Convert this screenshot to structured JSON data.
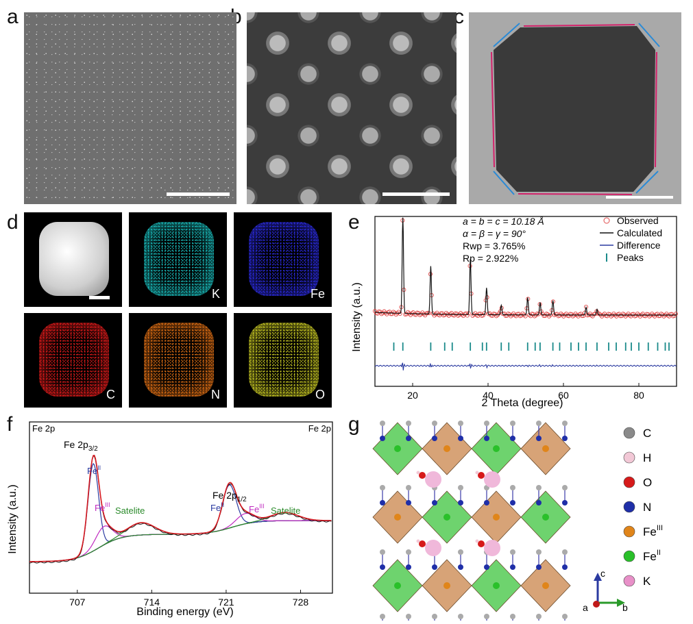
{
  "panels": {
    "a": {
      "label": "a"
    },
    "b": {
      "label": "b"
    },
    "c": {
      "label": "c"
    },
    "d": {
      "label": "d",
      "tiles": [
        {
          "element": "",
          "color": "#e6e6e6"
        },
        {
          "element": "K",
          "color": "#19b3b3"
        },
        {
          "element": "Fe",
          "color": "#2a2ad6"
        },
        {
          "element": "C",
          "color": "#d21a1a"
        },
        {
          "element": "N",
          "color": "#d56a14"
        },
        {
          "element": "O",
          "color": "#bdbd22"
        }
      ]
    },
    "e": {
      "label": "e"
    },
    "f": {
      "label": "f"
    },
    "g": {
      "label": "g"
    }
  },
  "chart_data": [
    {
      "type": "scatter",
      "panel": "e",
      "xlabel": "2 Theta (degree)",
      "ylabel": "Intensity (a.u.)",
      "xlim": [
        10,
        90
      ],
      "xticks": [
        20,
        40,
        60,
        80
      ],
      "annotations": [
        "a = b = c = 10.18 Å",
        "α = β = γ = 90°",
        "Rwp = 3.765%",
        "Rp = 2.922%"
      ],
      "legend": [
        "Observed",
        "Calculated",
        "Difference",
        "Peaks"
      ],
      "peaks_2theta": [
        17.4,
        24.8,
        35.3,
        39.6,
        43.5,
        50.5,
        53.8,
        57.2,
        66.0,
        68.9
      ],
      "peak_rel_intensity": [
        1.0,
        0.5,
        0.58,
        0.28,
        0.1,
        0.18,
        0.13,
        0.15,
        0.08,
        0.06
      ],
      "tick_marks_2theta": [
        15,
        17.4,
        24.8,
        28.5,
        30.5,
        35.3,
        38.5,
        39.6,
        43.5,
        45.5,
        50.5,
        52.5,
        53.8,
        57.2,
        59,
        62,
        64,
        66,
        68.9,
        72,
        74,
        76.5,
        78,
        80,
        82.5,
        85,
        87,
        88
      ]
    },
    {
      "type": "line",
      "panel": "f",
      "xlabel": "Binding energy (eV)",
      "ylabel": "Intensity (a.u.)",
      "xlim": [
        702.5,
        731
      ],
      "xticks": [
        707,
        714,
        721,
        728
      ],
      "corner_labels": [
        "Fe 2p",
        "Fe 2p"
      ],
      "peak_labels": {
        "fe2p32": "Fe 2p3/2",
        "fe2p12": "Fe 2p1/2",
        "feII_a": "FeII",
        "feIII_a": "FeIII",
        "sat_a": "Satelite",
        "feII_b": "FeII",
        "feIII_b": "FeIII",
        "sat_b": "Satelite"
      },
      "series": [
        {
          "name": "FeII 2p3/2",
          "center": 708.5,
          "height": 0.85
        },
        {
          "name": "FeIII 2p3/2",
          "center": 709.5,
          "height": 0.18
        },
        {
          "name": "Satelite",
          "center": 713.0,
          "height": 0.12
        },
        {
          "name": "FeII 2p1/2",
          "center": 721.3,
          "height": 0.42
        },
        {
          "name": "FeIII 2p1/2",
          "center": 722.8,
          "height": 0.1
        },
        {
          "name": "Satelite",
          "center": 726.5,
          "height": 0.08
        }
      ],
      "colors": {
        "envelope": "#d6181f",
        "raw": "#111111",
        "feII": "#2a3aa0",
        "feIII": "#c02cc0",
        "sat": "#2a8a2a",
        "bg": "#1a8a8a"
      }
    }
  ],
  "structure": {
    "legend": [
      {
        "symbol": "C",
        "color": "#8a8a8a"
      },
      {
        "symbol": "H",
        "color": "#f2c8d6"
      },
      {
        "symbol": "O",
        "color": "#d61a1a"
      },
      {
        "symbol": "N",
        "color": "#1f2fa8"
      },
      {
        "symbol": "Fe",
        "sup": "III",
        "color": "#e0851a"
      },
      {
        "symbol": "Fe",
        "sup": "II",
        "color": "#2ac02a"
      },
      {
        "symbol": "K",
        "color": "#e890c8"
      }
    ],
    "axes": {
      "a": "a",
      "b": "b",
      "c": "c"
    }
  }
}
